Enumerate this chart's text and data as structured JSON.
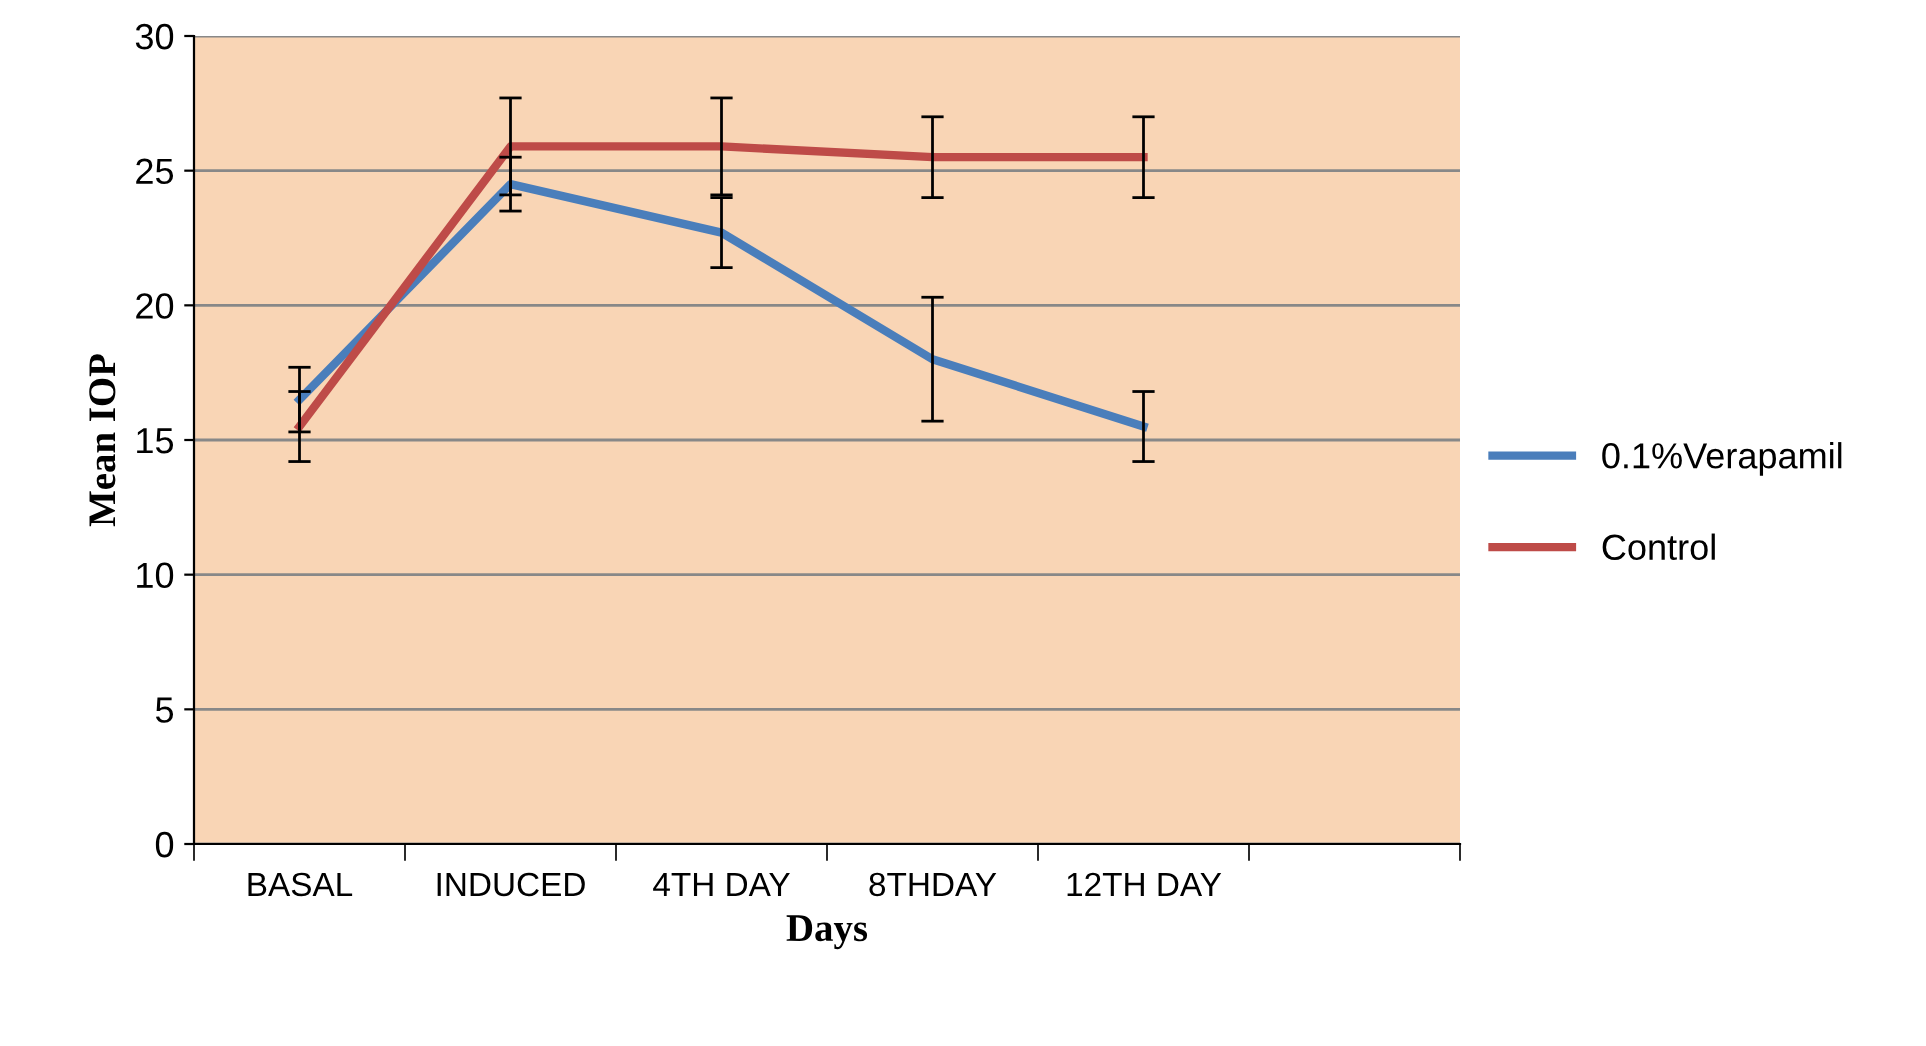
{
  "chart_data": {
    "type": "line",
    "xlabel": "Days",
    "ylabel": "Mean IOP",
    "categories": [
      "BASAL",
      "INDUCED",
      "4TH DAY",
      "8THDAY",
      "12TH DAY",
      null
    ],
    "series": [
      {
        "name": "0.1%Verapamil",
        "color": "#4a7ebb",
        "values": [
          16.5,
          24.5,
          22.7,
          18.0,
          15.5,
          null
        ],
        "errors": [
          1.2,
          1.0,
          1.3,
          2.3,
          1.3,
          null
        ]
      },
      {
        "name": "Control",
        "color": "#be4b48",
        "values": [
          15.5,
          25.9,
          25.9,
          25.5,
          25.5,
          null
        ],
        "errors": [
          1.3,
          1.8,
          1.8,
          1.5,
          1.5,
          null
        ]
      }
    ],
    "ylim": [
      0,
      30
    ],
    "yticks": [
      0,
      5,
      10,
      15,
      20,
      25,
      30
    ],
    "grid": "y",
    "legend": "right",
    "marker": "none",
    "line_style": "solid"
  }
}
